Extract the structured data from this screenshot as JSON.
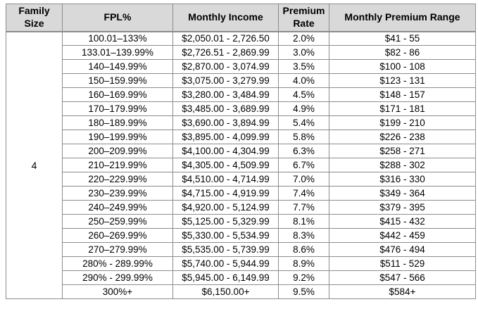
{
  "colors": {
    "header_bg": "#d9d9d9",
    "border": "#8c8c8c",
    "text": "#000000"
  },
  "table": {
    "family_size": "4",
    "headers": [
      "Family\nSize",
      "FPL%",
      "Monthly Income",
      "Premium\nRate",
      "Monthly Premium Range"
    ],
    "rows": [
      {
        "fpl": "100.01–133%",
        "income": "$2,050.01 - 2,726.50",
        "rate": "2.0%",
        "range": "$41 - 55"
      },
      {
        "fpl": "133.01–139.99%",
        "income": "$2,726.51 - 2,869.99",
        "rate": "3.0%",
        "range": "$82 - 86"
      },
      {
        "fpl": "140–149.99%",
        "income": "$2,870.00 - 3,074.99",
        "rate": "3.5%",
        "range": "$100 - 108"
      },
      {
        "fpl": "150–159.99%",
        "income": "$3,075.00 - 3,279.99",
        "rate": "4.0%",
        "range": "$123 - 131"
      },
      {
        "fpl": "160–169.99%",
        "income": "$3,280.00 - 3,484.99",
        "rate": "4.5%",
        "range": "$148 - 157"
      },
      {
        "fpl": "170–179.99%",
        "income": "$3,485.00 - 3,689.99",
        "rate": "4.9%",
        "range": "$171 - 181"
      },
      {
        "fpl": "180–189.99%",
        "income": "$3,690.00 - 3,894.99",
        "rate": "5.4%",
        "range": "$199 - 210"
      },
      {
        "fpl": "190–199.99%",
        "income": "$3,895.00 - 4,099.99",
        "rate": "5.8%",
        "range": "$226 - 238"
      },
      {
        "fpl": "200–209.99%",
        "income": "$4,100.00 - 4,304.99",
        "rate": "6.3%",
        "range": "$258 - 271"
      },
      {
        "fpl": "210–219.99%",
        "income": "$4,305.00 - 4,509.99",
        "rate": "6.7%",
        "range": "$288 - 302"
      },
      {
        "fpl": "220–229.99%",
        "income": "$4,510.00 - 4,714.99",
        "rate": "7.0%",
        "range": "$316 - 330"
      },
      {
        "fpl": "230–239.99%",
        "income": "$4,715.00 - 4,919.99",
        "rate": "7.4%",
        "range": "$349 - 364"
      },
      {
        "fpl": "240–249.99%",
        "income": "$4,920.00 - 5,124.99",
        "rate": "7.7%",
        "range": "$379 - 395"
      },
      {
        "fpl": "250–259.99%",
        "income": "$5,125.00 - 5,329.99",
        "rate": "8.1%",
        "range": "$415 - 432"
      },
      {
        "fpl": "260–269.99%",
        "income": "$5,330.00 - 5,534.99",
        "rate": "8.3%",
        "range": "$442 - 459"
      },
      {
        "fpl": "270–279.99%",
        "income": "$5,535.00 - 5,739.99",
        "rate": "8.6%",
        "range": "$476 - 494"
      },
      {
        "fpl": "280% - 289.99%",
        "income": "$5,740.00 - 5,944.99",
        "rate": "8.9%",
        "range": "$511 - 529"
      },
      {
        "fpl": "290% - 299.99%",
        "income": "$5,945.00 - 6,149.99",
        "rate": "9.2%",
        "range": "$547 - 566"
      },
      {
        "fpl": "300%+",
        "income": "$6,150.00+",
        "rate": "9.5%",
        "range": "$584+"
      }
    ]
  }
}
